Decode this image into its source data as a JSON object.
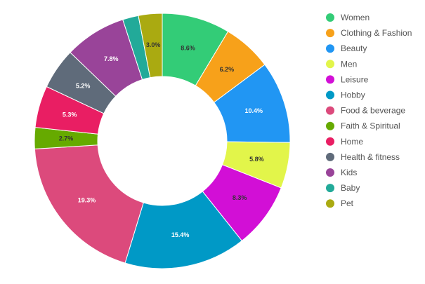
{
  "chart_data": {
    "type": "pie",
    "variant": "donut",
    "legend_position": "right",
    "title": "",
    "categories": [
      "Women",
      "Clothing & Fashion",
      "Beauty",
      "Men",
      "Leisure",
      "Hobby",
      "Food & beverage",
      "Faith & Spiritual",
      "Home",
      "Health & fitness",
      "Kids",
      "Baby",
      "Pet"
    ],
    "values": [
      8.6,
      6.2,
      10.4,
      5.8,
      8.3,
      15.4,
      19.3,
      2.7,
      5.3,
      5.2,
      7.8,
      2.0,
      3.0
    ],
    "data_labels": [
      "8.6%",
      "6.2%",
      "10.4%",
      "5.8%",
      "8.3%",
      "15.4%",
      "19.3%",
      "2.7%",
      "5.3%",
      "5.2%",
      "7.8%",
      "",
      "3.0%"
    ],
    "colors": [
      "#33cc77",
      "#f7a11a",
      "#2196f3",
      "#e2f54a",
      "#d20fd6",
      "#0099c6",
      "#dc4a7c",
      "#66aa00",
      "#e91e63",
      "#5f6b7a",
      "#994499",
      "#22aa99",
      "#aaaa11"
    ],
    "label_colors": [
      "#333333",
      "#333333",
      "#ffffff",
      "#333333",
      "#333333",
      "#ffffff",
      "#ffffff",
      "#333333",
      "#ffffff",
      "#ffffff",
      "#ffffff",
      "#ffffff",
      "#333333"
    ]
  }
}
